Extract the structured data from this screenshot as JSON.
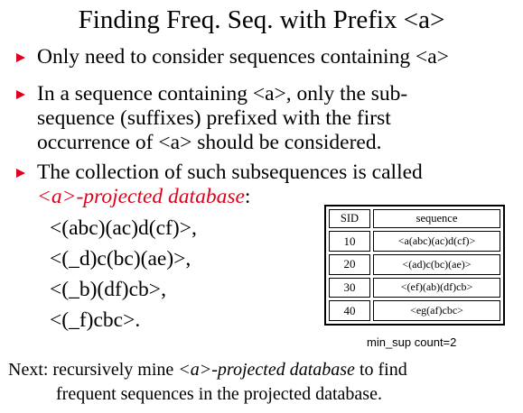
{
  "slide": {
    "title": "Finding Freq. Seq. with Prefix <a>",
    "bullets": [
      {
        "text": "Only need to consider sequences containing <a>"
      },
      {
        "line1": "In a sequence containing <a>, only the sub-",
        "line2": "sequence (suffixes) prefixed with the first",
        "line3": "occurrence of <a> should be considered."
      },
      {
        "line1": "The collection of such subsequences is called",
        "highlight": "<a>-projected database",
        "suffix": ":"
      }
    ],
    "sequences": [
      "<(abc)(ac)d(cf)>,",
      "<(_d)c(bc)(ae)>,",
      "<(_b)(df)cb>,",
      "<(_f)cbc>."
    ],
    "table": {
      "headers": [
        "SID",
        "sequence"
      ],
      "rows": [
        {
          "sid": "10",
          "sequence": "<a(abc)(ac)d(cf)>"
        },
        {
          "sid": "20",
          "sequence": "<(ad)c(bc)(ae)>"
        },
        {
          "sid": "30",
          "sequence": "<(ef)(ab)(df)cb>"
        },
        {
          "sid": "40",
          "sequence": "<eg(af)cbc>"
        }
      ]
    },
    "min_sup": "min_sup count=2",
    "next": {
      "prefix": "Next: recursively mine ",
      "italic": "<a>-projected database",
      "suffix": " to find",
      "line2": "frequent sequences in the projected database."
    },
    "colors": {
      "accent": "#e0001b"
    }
  }
}
